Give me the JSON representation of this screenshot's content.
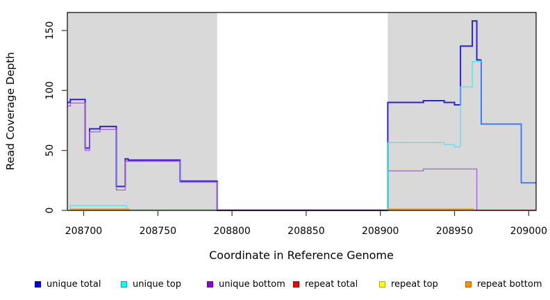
{
  "chart_data": {
    "type": "line",
    "step": true,
    "title": "",
    "xlabel": "Coordinate in Reference Genome",
    "ylabel": "Read Coverage Depth",
    "x_range": [
      208689,
      209005
    ],
    "y_range": [
      0,
      165
    ],
    "x_ticks": [
      208700,
      208750,
      208800,
      208850,
      208900,
      208950,
      209000
    ],
    "y_ticks": [
      0,
      50,
      100,
      150
    ],
    "grid": false,
    "frame_color": "#000000",
    "background_bands": [
      {
        "name": "left-aligned-region",
        "from": 208689,
        "to": 208790,
        "color": "#d9d9d9"
      },
      {
        "name": "right-aligned-region",
        "from": 208905,
        "to": 209005,
        "color": "#d9d9d9"
      }
    ],
    "series": [
      {
        "name": "unique-top-plus-repeat-top-at-zero-overlap",
        "color": "#98d998",
        "width": 1.3,
        "paths": [
          [
            [
              208729,
              0.7
            ],
            [
              208790,
              0.7
            ]
          ]
        ]
      },
      {
        "name": "unique-total",
        "color": "#2b21dd",
        "width": 2,
        "paths": [
          [
            [
              208689,
              90
            ],
            [
              208691,
              90
            ],
            [
              208691,
              92.5
            ],
            [
              208701,
              92.5
            ],
            [
              208701,
              52
            ],
            [
              208704,
              52
            ],
            [
              208704,
              68
            ],
            [
              208711,
              68
            ],
            [
              208711,
              70
            ],
            [
              208722,
              70
            ],
            [
              208722,
              20
            ],
            [
              208728,
              20
            ],
            [
              208728,
              43
            ],
            [
              208730,
              43
            ],
            [
              208730,
              42
            ],
            [
              208765,
              42
            ],
            [
              208765,
              24.5
            ],
            [
              208790,
              24.5
            ],
            [
              208790,
              0
            ],
            [
              208905,
              0
            ],
            [
              208905,
              90
            ],
            [
              208929,
              90
            ],
            [
              208929,
              91.5
            ],
            [
              208943,
              91.5
            ],
            [
              208943,
              90
            ],
            [
              208950,
              90
            ],
            [
              208950,
              88
            ],
            [
              208954,
              88
            ],
            [
              208954,
              137
            ],
            [
              208962,
              137
            ],
            [
              208962,
              158
            ],
            [
              208965,
              158
            ],
            [
              208965,
              125.5
            ],
            [
              208968,
              125.5
            ]
          ]
        ]
      },
      {
        "name": "unique-bottom",
        "color": "#a55fd5",
        "width": 1.3,
        "paths": [
          [
            [
              208689,
              87
            ],
            [
              208691,
              87
            ],
            [
              208691,
              89.5
            ],
            [
              208701,
              89.5
            ],
            [
              208701,
              50
            ],
            [
              208704,
              50
            ],
            [
              208704,
              65.5
            ],
            [
              208711,
              65.5
            ],
            [
              208711,
              67.5
            ],
            [
              208722,
              67.5
            ],
            [
              208722,
              17
            ],
            [
              208728,
              17
            ],
            [
              208728,
              41
            ],
            [
              208765,
              41
            ],
            [
              208765,
              23.5
            ],
            [
              208790,
              23.5
            ],
            [
              208790,
              0.6
            ],
            [
              208905,
              0.6
            ],
            [
              208905,
              33
            ],
            [
              208929,
              33
            ],
            [
              208929,
              34.5
            ],
            [
              208965,
              34.5
            ],
            [
              208965,
              0
            ],
            [
              209005,
              0
            ]
          ]
        ]
      },
      {
        "name": "unique-total-coinciding-with-unique-top",
        "color": "#3e7df8",
        "width": 2,
        "paths": [
          [
            [
              208968,
              125.5
            ],
            [
              208968,
              72
            ],
            [
              208995,
              72
            ],
            [
              208995,
              23
            ],
            [
              209005,
              23
            ]
          ]
        ]
      },
      {
        "name": "unique-top",
        "color": "#45e8f2",
        "width": 1.3,
        "paths": [
          [
            [
              208691,
              0.2
            ],
            [
              208691,
              4
            ],
            [
              208729,
              4
            ],
            [
              208729,
              0.2
            ]
          ],
          [
            [
              208905,
              0.2
            ],
            [
              208905,
              56.5
            ],
            [
              208943,
              56.5
            ],
            [
              208943,
              55
            ],
            [
              208950,
              55
            ],
            [
              208950,
              53
            ],
            [
              208954,
              53
            ],
            [
              208954,
              103
            ],
            [
              208962,
              103
            ],
            [
              208962,
              124
            ],
            [
              208968,
              124
            ]
          ]
        ]
      },
      {
        "name": "repeat-total",
        "color": "#dd3a55",
        "width": 1.3,
        "paths": [
          [
            [
              208963,
              0.3
            ],
            [
              209005,
              0.3
            ]
          ]
        ]
      },
      {
        "name": "repeat-bottom",
        "color": "#ff9100",
        "width": 2,
        "paths": [
          [
            [
              208691,
              0.9
            ],
            [
              208731,
              0.9
            ]
          ],
          [
            [
              208905,
              0.9
            ],
            [
              208963,
              0.9
            ]
          ]
        ]
      }
    ],
    "legend": {
      "position": "bottom",
      "items": [
        {
          "label": "unique total",
          "fill": "#0000f0",
          "border": "#0000a0"
        },
        {
          "label": "unique top",
          "fill": "#00ffff",
          "border": "#00a6b3"
        },
        {
          "label": "unique bottom",
          "fill": "#9400d3",
          "border": "#6a00a0"
        },
        {
          "label": "repeat total",
          "fill": "#ee0000",
          "border": "#a00000"
        },
        {
          "label": "repeat top",
          "fill": "#ffff00",
          "border": "#b0b000"
        },
        {
          "label": "repeat bottom",
          "fill": "#ff9100",
          "border": "#b36500"
        }
      ]
    }
  }
}
